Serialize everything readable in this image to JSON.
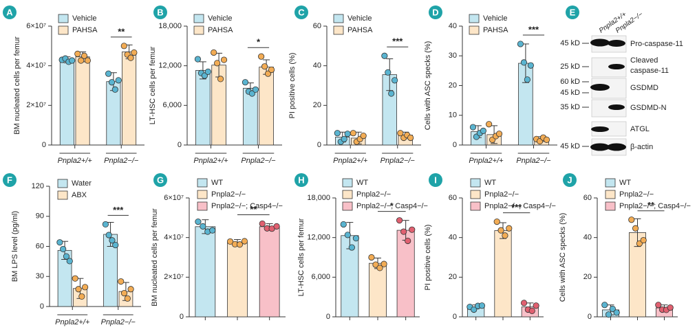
{
  "chart_data": [
    {
      "type": "bar",
      "panel": "A",
      "ylabel": "BM nucleated cells per femur",
      "categories": [
        "Pnpla2+/+",
        "Pnpla2−/−"
      ],
      "series": [
        {
          "name": "Vehicle",
          "color": "#c3e6f0",
          "marker_color": "#5ab4d0",
          "values": [
            43000000,
            32000000
          ],
          "errors": [
            1500000,
            4500000
          ],
          "points": [
            [
              43000000,
              44000000,
              42000000,
              43000000
            ],
            [
              36000000,
              32000000,
              28000000,
              33000000
            ]
          ]
        },
        {
          "name": "PAHSA",
          "color": "#fde6c8",
          "marker_color": "#f2ac55",
          "values": [
            44500000,
            47000000
          ],
          "errors": [
            2500000,
            3500000
          ],
          "points": [
            [
              46000000,
              43000000,
              45000000,
              43000000
            ],
            [
              50000000,
              46000000,
              44000000,
              47000000
            ]
          ]
        }
      ],
      "ylim": [
        0,
        60000000
      ],
      "yticks": [
        0,
        {
          "value": 20000000,
          "label": "2×10⁷"
        },
        {
          "value": 40000000,
          "label": "4×10⁷"
        },
        {
          "value": 60000000,
          "label": "6×10⁷"
        }
      ],
      "significance": "**"
    },
    {
      "type": "bar",
      "panel": "B",
      "ylabel": "LT-HSC cells per femur",
      "categories": [
        "Pnpla2+/+",
        "Pnpla2−/−"
      ],
      "series": [
        {
          "name": "Vehicle",
          "color": "#c3e6f0",
          "marker_color": "#5ab4d0",
          "values": [
            11300,
            8600
          ],
          "errors": [
            1300,
            800
          ],
          "points": [
            [
              13000,
              11000,
              10500,
              11200
            ],
            [
              9500,
              8200,
              7800,
              8500
            ]
          ]
        },
        {
          "name": "PAHSA",
          "color": "#fde6c8",
          "marker_color": "#f2ac55",
          "values": [
            12100,
            11800
          ],
          "errors": [
            1800,
            1100
          ],
          "points": [
            [
              14000,
              12500,
              10000,
              13000
            ],
            [
              13400,
              12000,
              10800,
              11500
            ]
          ]
        }
      ],
      "ylim": [
        0,
        18000
      ],
      "yticks": [
        0,
        {
          "value": 6000,
          "label": "6,000"
        },
        {
          "value": 12000,
          "label": "12,000"
        },
        {
          "value": 18000,
          "label": "18,000"
        }
      ],
      "significance": "*"
    },
    {
      "type": "bar",
      "panel": "C",
      "ylabel": "PI positive cells (%)",
      "categories": [
        "Pnpla2+/+",
        "Pnpla2−/−"
      ],
      "series": [
        {
          "name": "Vehicle",
          "color": "#c3e6f0",
          "marker_color": "#5ab4d0",
          "values": [
            4,
            35.5
          ],
          "errors": [
            2.5,
            8
          ],
          "points": [
            [
              6,
              2,
              3,
              6
            ],
            [
              45,
              37,
              26,
              33
            ]
          ]
        },
        {
          "name": "PAHSA",
          "color": "#fde6c8",
          "marker_color": "#f2ac55",
          "values": [
            3.5,
            5
          ],
          "errors": [
            3,
            1.5
          ],
          "points": [
            [
              6,
              2,
              3,
              5
            ],
            [
              6,
              4,
              5,
              4
            ]
          ]
        }
      ],
      "ylim": [
        0,
        60
      ],
      "yticks": [
        0,
        20,
        40,
        60
      ],
      "significance": "***"
    },
    {
      "type": "bar",
      "panel": "D",
      "ylabel": "Cells with ASC specks (%)",
      "categories": [
        "Pnpla2+/+",
        "Pnpla2−/−"
      ],
      "series": [
        {
          "name": "Vehicle",
          "color": "#c3e6f0",
          "marker_color": "#5ab4d0",
          "values": [
            4.5,
            27.5
          ],
          "errors": [
            2,
            6.5
          ],
          "points": [
            [
              6,
              3,
              4,
              5
            ],
            [
              34,
              28,
              22,
              27
            ]
          ]
        },
        {
          "name": "PAHSA",
          "color": "#fde6c8",
          "marker_color": "#f2ac55",
          "values": [
            3.5,
            2
          ],
          "errors": [
            3,
            0.8
          ],
          "points": [
            [
              7,
              2,
              3,
              4
            ],
            [
              2,
              1.5,
              2.5,
              2
            ]
          ]
        }
      ],
      "ylim": [
        0,
        40
      ],
      "yticks": [
        0,
        10,
        20,
        30,
        40
      ],
      "significance": "***"
    },
    {
      "type": "bar",
      "panel": "F",
      "ylabel": "BM LPS level (pg/ml)",
      "categories": [
        "Pnpla2+/+",
        "Pnpla2−/−"
      ],
      "series": [
        {
          "name": "Water",
          "color": "#c3e6f0",
          "marker_color": "#5ab4d0",
          "values": [
            56,
            72
          ],
          "errors": [
            9,
            12
          ],
          "points": [
            [
              64,
              58,
              50,
              46
            ],
            [
              82,
              72,
              66,
              62
            ]
          ]
        },
        {
          "name": "ABX",
          "color": "#fde6c8",
          "marker_color": "#f2ac55",
          "values": [
            18,
            15
          ],
          "errors": [
            10,
            9
          ],
          "points": [
            [
              28,
              18,
              10,
              20
            ],
            [
              25,
              14,
              8,
              18
            ]
          ]
        }
      ],
      "ylim": [
        0,
        120
      ],
      "yticks": [
        0,
        30,
        60,
        90,
        120
      ],
      "significance": "***"
    },
    {
      "type": "bar",
      "panel": "G",
      "ylabel": "BM nucleated cells per femur",
      "series": [
        {
          "name": "WT",
          "color": "#c3e6f0",
          "marker_color": "#5ab4d0",
          "values": [
            45500000
          ],
          "errors": [
            3500000
          ],
          "points": [
            [
              48000000,
              46000000,
              43000000,
              44000000
            ]
          ]
        },
        {
          "name": "Pnpla2−/−",
          "color": "#fde6c8",
          "marker_color": "#f2ac55",
          "values": [
            37500000
          ],
          "errors": [
            1500000
          ],
          "points": [
            [
              38000000,
              37000000,
              36500000,
              38500000
            ]
          ]
        },
        {
          "name": "Pnpla2−/−; Casp4−/−",
          "color": "#f8c0c8",
          "marker_color": "#e06070",
          "values": [
            45500000
          ],
          "errors": [
            1500000
          ],
          "points": [
            [
              47000000,
              45000000,
              44500000,
              46000000
            ]
          ]
        }
      ],
      "ylim": [
        0,
        60000000
      ],
      "yticks": [
        0,
        {
          "value": 20000000,
          "label": "2×10⁷"
        },
        {
          "value": 40000000,
          "label": "4×10⁷"
        },
        {
          "value": 60000000,
          "label": "6×10⁷"
        }
      ],
      "significance": "**"
    },
    {
      "type": "bar",
      "panel": "H",
      "ylabel": "LT-HSC cells per femur",
      "series": [
        {
          "name": "WT",
          "color": "#c3e6f0",
          "marker_color": "#5ab4d0",
          "values": [
            12300
          ],
          "errors": [
            2000
          ],
          "points": [
            [
              14000,
              12500,
              10500,
              12000
            ]
          ]
        },
        {
          "name": "Pnpla2−/−",
          "color": "#fde6c8",
          "marker_color": "#f2ac55",
          "values": [
            8100
          ],
          "errors": [
            800
          ],
          "points": [
            [
              9000,
              8000,
              7400,
              8100
            ]
          ]
        },
        {
          "name": "Pnpla2−/−; Casp4−/−",
          "color": "#f8c0c8",
          "marker_color": "#e06070",
          "values": [
            13100
          ],
          "errors": [
            1500
          ],
          "points": [
            [
              14600,
              13000,
              11500,
              13300
            ]
          ]
        }
      ],
      "ylim": [
        0,
        18000
      ],
      "yticks": [
        0,
        {
          "value": 6000,
          "label": "6,000"
        },
        {
          "value": 12000,
          "label": "12,000"
        },
        {
          "value": 18000,
          "label": "18,000"
        }
      ],
      "significance": "*"
    },
    {
      "type": "bar",
      "panel": "I",
      "ylabel": "PI positive cells (%)",
      "series": [
        {
          "name": "WT",
          "color": "#c3e6f0",
          "marker_color": "#5ab4d0",
          "values": [
            5
          ],
          "errors": [
            1
          ],
          "points": [
            [
              5,
              4,
              5.5,
              6
            ]
          ]
        },
        {
          "name": "Pnpla2−/−",
          "color": "#fde6c8",
          "marker_color": "#f2ac55",
          "values": [
            43.5
          ],
          "errors": [
            4
          ],
          "points": [
            [
              48,
              44,
              41,
              45
            ]
          ]
        },
        {
          "name": "Pnpla2−/−; Casp4−/−",
          "color": "#f8c0c8",
          "marker_color": "#e06070",
          "values": [
            5
          ],
          "errors": [
            2
          ],
          "points": [
            [
              7,
              4,
              3,
              6
            ]
          ]
        }
      ],
      "ylim": [
        0,
        60
      ],
      "yticks": [
        0,
        20,
        40,
        60
      ],
      "significance": "***"
    },
    {
      "type": "bar",
      "panel": "J",
      "ylabel": "Cells with ASC specks (%)",
      "series": [
        {
          "name": "WT",
          "color": "#c3e6f0",
          "marker_color": "#5ab4d0",
          "values": [
            3.5
          ],
          "errors": [
            2.5
          ],
          "points": [
            [
              6,
              1.5,
              4,
              2.5
            ]
          ]
        },
        {
          "name": "Pnpla2−/−",
          "color": "#fde6c8",
          "marker_color": "#f2ac55",
          "values": [
            42.5
          ],
          "errors": [
            7
          ],
          "points": [
            [
              49,
              45,
              37,
              39
            ]
          ]
        },
        {
          "name": "Pnpla2−/−; Casp4−/−",
          "color": "#f8c0c8",
          "marker_color": "#e06070",
          "values": [
            4.5
          ],
          "errors": [
            1.5
          ],
          "points": [
            [
              6,
              4,
              3.5,
              5
            ]
          ]
        }
      ],
      "ylim": [
        0,
        60
      ],
      "yticks": [
        0,
        20,
        40,
        60
      ],
      "significance": "**"
    }
  ],
  "blot": {
    "panel": "E",
    "lanes": [
      "Pnpla2+/+",
      "Pnpla2−/−"
    ],
    "rows": [
      {
        "markers": [
          "45 kD"
        ],
        "label": [
          "Pro-caspase-11"
        ]
      },
      {
        "markers": [
          "25 kD"
        ],
        "label": [
          "Cleaved",
          "caspase-11"
        ]
      },
      {
        "markers": [
          "60 kD",
          "45 kD"
        ],
        "label": [
          "GSDMD"
        ]
      },
      {
        "markers": [
          "35 kD"
        ],
        "label": [
          "GSDMD-N"
        ]
      },
      {
        "markers": [],
        "label": [
          "ATGL"
        ]
      },
      {
        "markers": [
          "45 kD"
        ],
        "label": [
          "β-actin"
        ]
      }
    ]
  }
}
